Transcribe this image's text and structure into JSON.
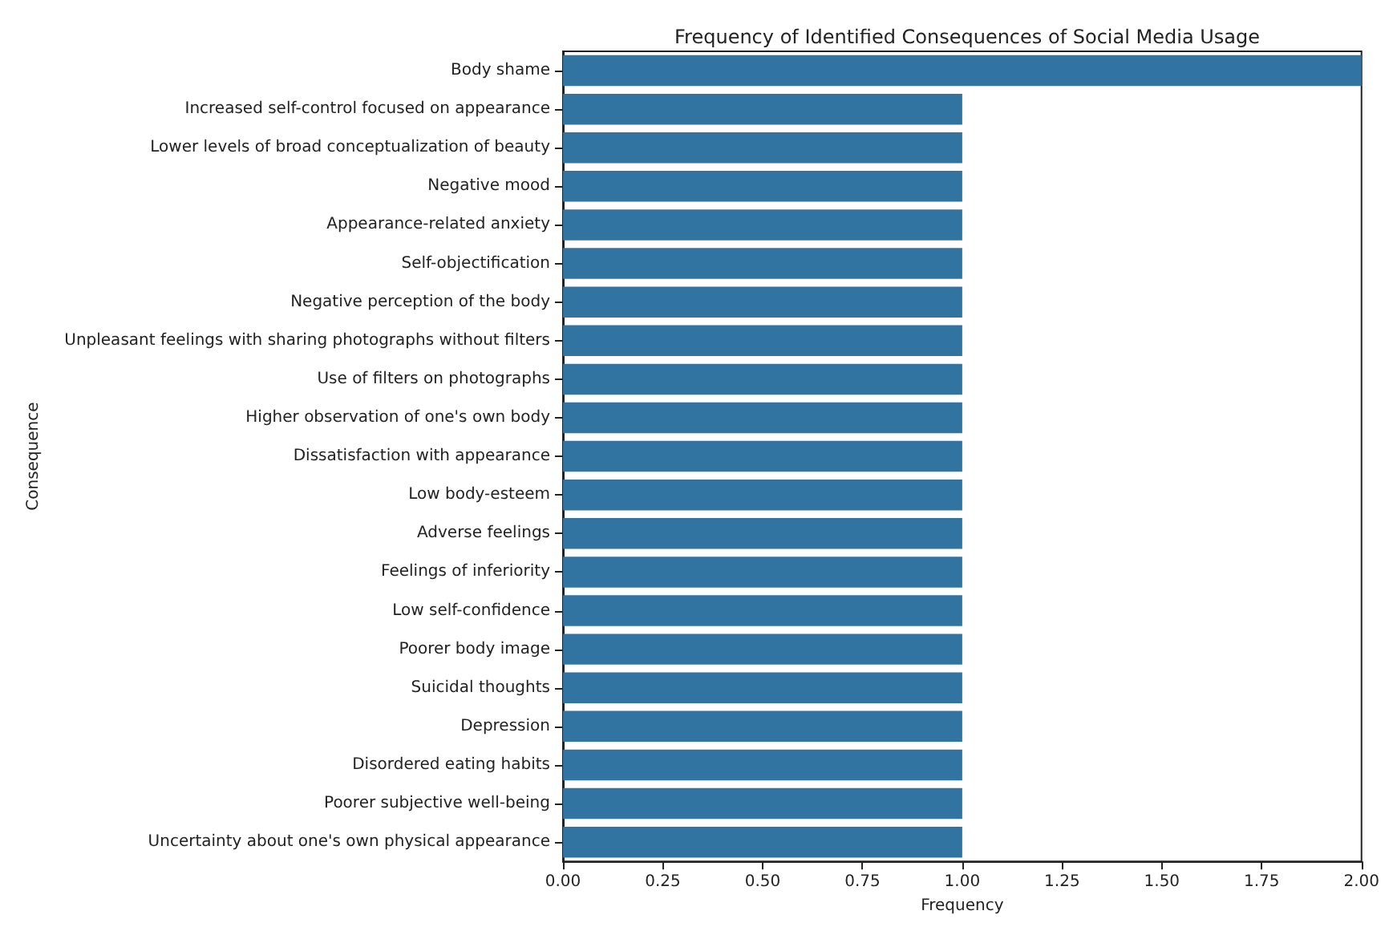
{
  "chart_data": {
    "type": "bar",
    "orientation": "horizontal",
    "title": "Frequency of Identified Consequences of Social Media Usage",
    "xlabel": "Frequency",
    "ylabel": "Consequence",
    "categories": [
      "Body shame",
      "Increased self-control focused on appearance",
      "Lower levels of broad conceptualization of beauty",
      "Negative mood",
      "Appearance-related anxiety",
      "Self-objectification",
      "Negative perception of the body",
      "Unpleasant feelings with sharing photographs without filters",
      "Use of filters on photographs",
      "Higher observation of one's own body",
      "Dissatisfaction with appearance",
      "Low body-esteem",
      "Adverse feelings",
      "Feelings of inferiority",
      "Low self-confidence",
      "Poorer body image",
      "Suicidal thoughts",
      "Depression",
      "Disordered eating habits",
      "Poorer subjective well-being",
      "Uncertainty about one's own physical appearance"
    ],
    "values": [
      2,
      1,
      1,
      1,
      1,
      1,
      1,
      1,
      1,
      1,
      1,
      1,
      1,
      1,
      1,
      1,
      1,
      1,
      1,
      1,
      1
    ],
    "color": "#3274a1",
    "xlim": [
      0,
      2
    ],
    "xticks": [
      {
        "value": 0,
        "label": "0.00"
      },
      {
        "value": 0.25,
        "label": "0.25"
      },
      {
        "value": 0.5,
        "label": "0.50"
      },
      {
        "value": 0.75,
        "label": "0.75"
      },
      {
        "value": 1,
        "label": "1.00"
      },
      {
        "value": 1.25,
        "label": "1.25"
      },
      {
        "value": 1.5,
        "label": "1.50"
      },
      {
        "value": 1.75,
        "label": "1.75"
      },
      {
        "value": 2,
        "label": "2.00"
      }
    ],
    "grid": false
  }
}
